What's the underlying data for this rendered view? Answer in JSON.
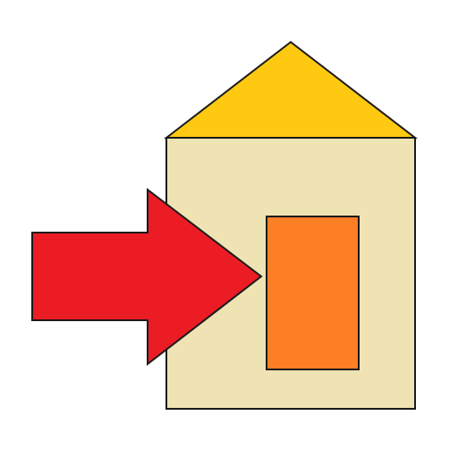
{
  "icon": {
    "name": "enter-house-icon",
    "colors": {
      "background": "#ffffff",
      "outline": "#1a1a1a",
      "roof": "#fec910",
      "wall": "#efe3b3",
      "door": "#fc7e25",
      "arrow": "#ec1c24"
    }
  }
}
